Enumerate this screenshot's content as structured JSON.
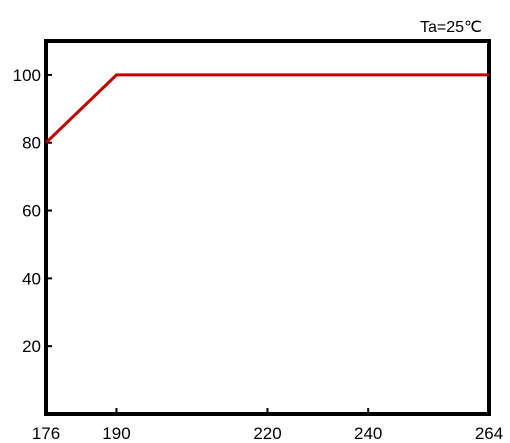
{
  "chart_data": {
    "type": "line",
    "title": "",
    "xlabel": "",
    "ylabel": "",
    "annotation": "Ta=25℃",
    "x": [
      176,
      190,
      264
    ],
    "values": [
      80,
      100,
      100
    ],
    "xlim": [
      176,
      264
    ],
    "ylim": [
      0,
      110
    ],
    "x_ticks": [
      {
        "value": 176,
        "label": "176"
      },
      {
        "value": 190,
        "label": "190"
      },
      {
        "value": 220,
        "label": "220"
      },
      {
        "value": 240,
        "label": "240"
      },
      {
        "value": 264,
        "label": "264"
      }
    ],
    "y_ticks": [
      {
        "value": 20,
        "label": "20"
      },
      {
        "value": 40,
        "label": "40"
      },
      {
        "value": 60,
        "label": "60"
      },
      {
        "value": 80,
        "label": "80"
      },
      {
        "value": 100,
        "label": "100"
      }
    ],
    "grid": false,
    "legend": "none",
    "colors": {
      "line": "#c00000",
      "frame": "#000000",
      "text": "#000000",
      "background": "#ffffff"
    }
  }
}
